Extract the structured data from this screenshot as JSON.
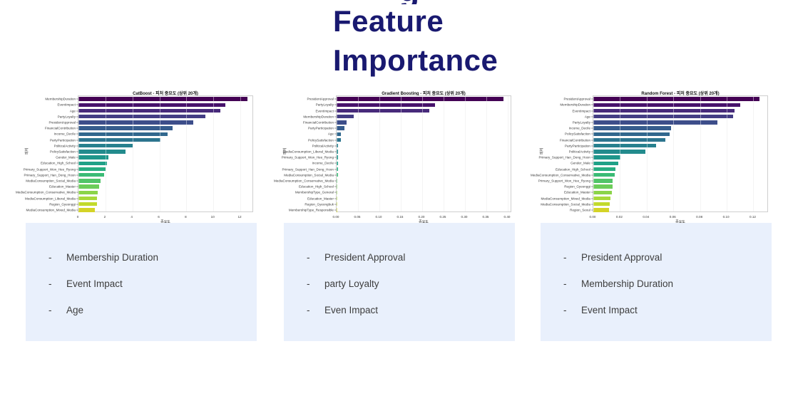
{
  "header": {
    "clipped_text": "g",
    "title_lines": [
      "Feature",
      "Importance"
    ],
    "title_color": "#191970"
  },
  "palette": [
    "#440154",
    "#47126b",
    "#472a7a",
    "#433d84",
    "#3d4e8a",
    "#365c8d",
    "#31688e",
    "#2c748e",
    "#27808e",
    "#238b8d",
    "#1f968b",
    "#1fa187",
    "#27ad81",
    "#3abb75",
    "#51c468",
    "#6ccd5a",
    "#8bd449",
    "#a8d93a",
    "#c2da2c",
    "#d4d327"
  ],
  "chart_data": [
    {
      "type": "bar",
      "orientation": "horizontal",
      "title": "CatBoost - 피처 중요도 (상위 20개)",
      "xlabel": "중요도",
      "ylabel": "피처",
      "grid": true,
      "xlim": [
        0,
        13
      ],
      "xticks": [
        0,
        2,
        4,
        6,
        8,
        10,
        12
      ],
      "xtick_labels": [
        "0",
        "2",
        "4",
        "6",
        "8",
        "10",
        "12"
      ],
      "categories": [
        "MembershipDuration",
        "EventImpact",
        "Age",
        "PartyLoyalty",
        "PresidentApproval",
        "FinancialContribution",
        "Income_Decile",
        "PartyParticipation",
        "PoliticalActivity",
        "PolicySatisfaction",
        "Gender_Male",
        "Education_High_School",
        "Primary_Support_Won_Hee_Ryong",
        "Primary_Support_Han_Dong_Hoon",
        "MediaConsumption_Social_Media",
        "Education_Master",
        "MediaConsumption_Conservative_Media",
        "MediaConsumption_Liberal_Media",
        "Region_Gyeonggi",
        "MediaConsumption_Mixed_Media"
      ],
      "values": [
        12.5,
        10.9,
        10.5,
        9.4,
        8.5,
        7.0,
        6.6,
        6.1,
        4.0,
        3.5,
        2.2,
        2.1,
        2.0,
        1.9,
        1.65,
        1.55,
        1.45,
        1.4,
        1.35,
        1.2
      ]
    },
    {
      "type": "bar",
      "orientation": "horizontal",
      "title": "Gradient Boosting - 피처 중요도 (상위 20개)",
      "xlabel": "중요도",
      "ylabel": "피처",
      "grid": true,
      "xlim": [
        0,
        0.41
      ],
      "xticks": [
        0,
        0.05,
        0.1,
        0.15,
        0.2,
        0.25,
        0.3,
        0.35,
        0.4
      ],
      "xtick_labels": [
        "0.00",
        "0.05",
        "0.10",
        "0.15",
        "0.20",
        "0.25",
        "0.30",
        "0.35",
        "0.40"
      ],
      "categories": [
        "PresidentApproval",
        "PartyLoyalty",
        "EventImpact",
        "MembershipDuration",
        "FinancialContribution",
        "PartyParticipation",
        "Age",
        "PolicySatisfaction",
        "PoliticalActivity",
        "MediaConsumption_Liberal_Media",
        "Primary_Support_Won_Hee_Ryong",
        "Income_Decile",
        "Primary_Support_Han_Dong_Hoon",
        "MediaConsumption_Social_Media",
        "MediaConsumption_Conservative_Media",
        "Education_High_School",
        "MembershipType_General",
        "Education_Master",
        "Region_Gyeongbuk",
        "MembershipType_Responsible"
      ],
      "values": [
        0.39,
        0.23,
        0.217,
        0.04,
        0.023,
        0.018,
        0.01,
        0.0095,
        0.004,
        0.0035,
        0.0032,
        0.003,
        0.0028,
        0.0025,
        0.0022,
        0.002,
        0.0017,
        0.0012,
        0.0008,
        0.0005
      ]
    },
    {
      "type": "bar",
      "orientation": "horizontal",
      "title": "Random Forest - 피처 중요도 (상위 20개)",
      "xlabel": "중요도",
      "ylabel": "피처",
      "grid": true,
      "xlim": [
        0,
        0.1315
      ],
      "xticks": [
        0,
        0.02,
        0.04,
        0.06,
        0.08,
        0.1,
        0.12
      ],
      "xtick_labels": [
        "0.00",
        "0.02",
        "0.04",
        "0.06",
        "0.08",
        "0.10",
        "0.12"
      ],
      "categories": [
        "PresidentApproval",
        "MembershipDuration",
        "EventImpact",
        "Age",
        "PartyLoyalty",
        "Income_Decile",
        "PolicySatisfaction",
        "FinancialContribution",
        "PartyParticipation",
        "PoliticalActivity",
        "Primary_Support_Han_Dong_Hoon",
        "Gender_Male",
        "Education_High_School",
        "MediaConsumption_Conservative_Media",
        "Primary_Support_Won_Hee_Ryong",
        "Region_Gyeonggi",
        "Education_Master",
        "MediaConsumption_Mixed_Media",
        "MediaConsumption_Social_Media",
        "Region_Seoul"
      ],
      "values": [
        0.1245,
        0.11,
        0.106,
        0.105,
        0.093,
        0.058,
        0.057,
        0.054,
        0.047,
        0.039,
        0.0203,
        0.0186,
        0.0165,
        0.0159,
        0.0147,
        0.0143,
        0.0138,
        0.0129,
        0.0122,
        0.0118
      ]
    }
  ],
  "notes": {
    "bullet": "-",
    "bg": "#e9f0fc",
    "boxes": [
      {
        "items": [
          "Membership Duration",
          "Event Impact",
          "Age"
        ]
      },
      {
        "items": [
          "President Approval",
          "party Loyalty",
          "Even Impact"
        ]
      },
      {
        "items": [
          "President Approval",
          "Membership Duration",
          "Event Impact"
        ]
      }
    ]
  }
}
